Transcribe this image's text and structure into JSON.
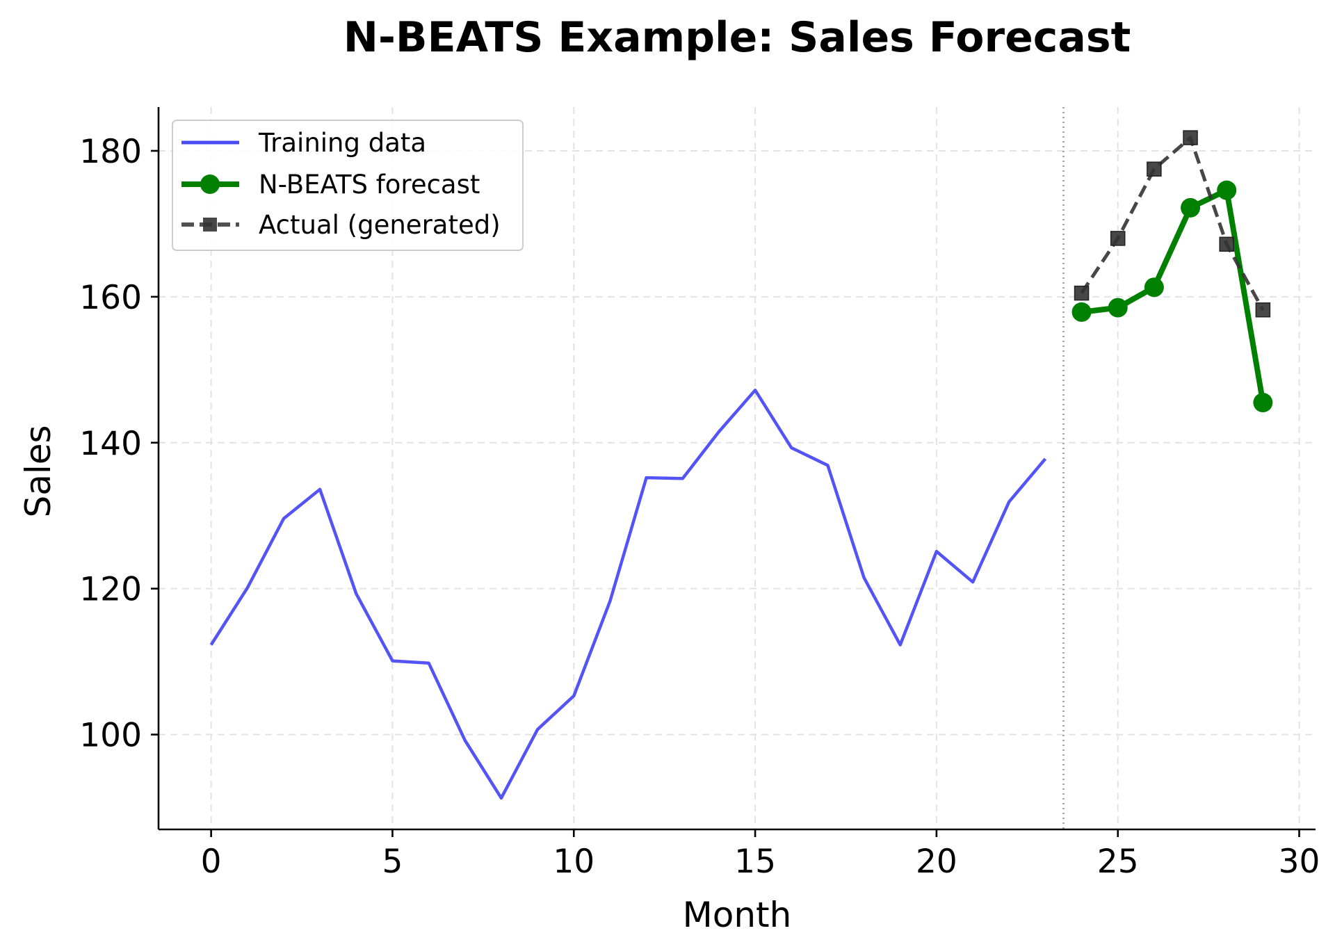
{
  "chart_data": {
    "type": "line",
    "title": "N-BEATS Example: Sales Forecast",
    "xlabel": "Month",
    "ylabel": "Sales",
    "xlim": [
      -1.45,
      30.45
    ],
    "ylim": [
      87,
      186
    ],
    "xticks": [
      0,
      5,
      10,
      15,
      20,
      25,
      30
    ],
    "yticks": [
      100,
      120,
      140,
      160,
      180
    ],
    "grid": true,
    "legend_position": "top-left",
    "forecast_start_marker": 23.5,
    "series": [
      {
        "name": "Training data",
        "color": "#4b4bf5",
        "style": "solid",
        "marker": "none",
        "x": [
          0,
          1,
          2,
          3,
          4,
          5,
          6,
          7,
          8,
          9,
          10,
          11,
          12,
          13,
          14,
          15,
          16,
          17,
          18,
          19,
          20,
          21,
          22,
          23
        ],
        "values": [
          112.3,
          120.1,
          129.6,
          133.6,
          119.3,
          110.1,
          109.8,
          99.2,
          91.3,
          100.7,
          105.3,
          118.3,
          135.2,
          135.1,
          141.5,
          147.2,
          139.3,
          136.9,
          121.5,
          112.3,
          125.1,
          120.9,
          131.9,
          137.8
        ]
      },
      {
        "name": "N-BEATS forecast",
        "color": "#008000",
        "style": "solid",
        "marker": "circle",
        "x": [
          24,
          25,
          26,
          27,
          28,
          29
        ],
        "values": [
          157.9,
          158.5,
          161.3,
          172.2,
          174.6,
          145.5
        ]
      },
      {
        "name": "Actual (generated)",
        "color": "#333333",
        "style": "dashed",
        "marker": "square",
        "x": [
          24,
          25,
          26,
          27,
          28,
          29
        ],
        "values": [
          160.5,
          168.0,
          177.5,
          181.8,
          167.2,
          158.2
        ]
      }
    ]
  }
}
